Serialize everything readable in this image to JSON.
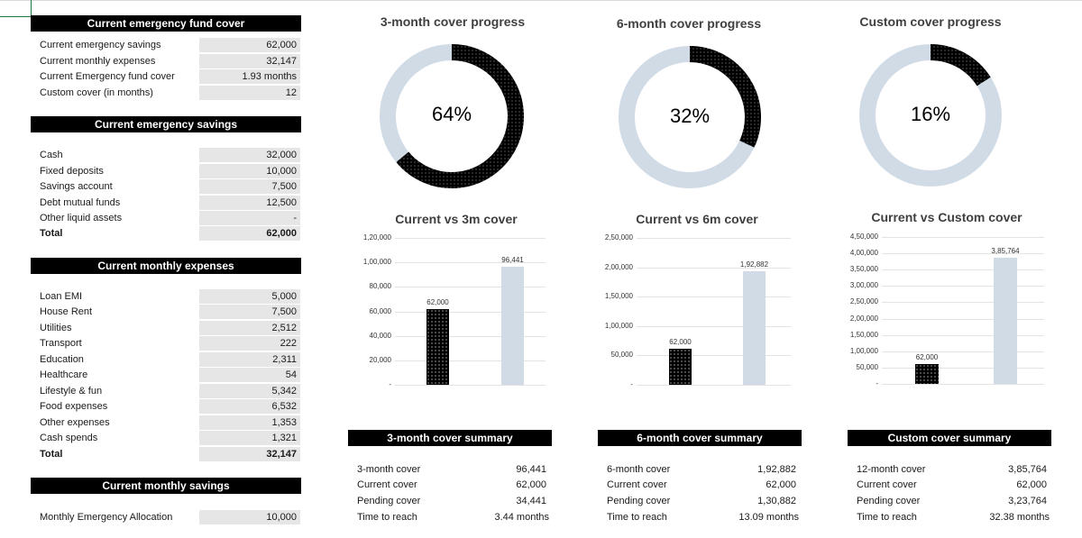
{
  "fund_cover": {
    "title": "Current emergency fund cover",
    "rows": [
      {
        "label": "Current emergency savings",
        "value": "62,000"
      },
      {
        "label": "Current monthly expenses",
        "value": "32,147"
      },
      {
        "label": "Current Emergency fund cover",
        "value": "1.93 months"
      },
      {
        "label": "Custom cover (in months)",
        "value": "12"
      }
    ]
  },
  "savings": {
    "title": "Current emergency savings",
    "rows": [
      {
        "label": "Cash",
        "value": "32,000"
      },
      {
        "label": "Fixed deposits",
        "value": "10,000"
      },
      {
        "label": "Savings account",
        "value": "7,500"
      },
      {
        "label": "Debt mutual funds",
        "value": "12,500"
      },
      {
        "label": "Other liquid assets",
        "value": "-"
      }
    ],
    "total_label": "Total",
    "total_value": "62,000"
  },
  "expenses": {
    "title": "Current monthly expenses",
    "rows": [
      {
        "label": "Loan EMI",
        "value": "5,000"
      },
      {
        "label": "House Rent",
        "value": "7,500"
      },
      {
        "label": "Utilities",
        "value": "2,512"
      },
      {
        "label": "Transport",
        "value": "222"
      },
      {
        "label": "Education",
        "value": "2,311"
      },
      {
        "label": "Healthcare",
        "value": "54"
      },
      {
        "label": "Lifestyle & fun",
        "value": "5,342"
      },
      {
        "label": "Food expenses",
        "value": "6,532"
      },
      {
        "label": "Other expenses",
        "value": "1,353"
      },
      {
        "label": "Cash spends",
        "value": "1,321"
      }
    ],
    "total_label": "Total",
    "total_value": "32,147"
  },
  "monthly_savings": {
    "title": "Current monthly savings",
    "label": "Monthly Emergency Allocation",
    "value": "10,000"
  },
  "colors": {
    "dark": "#000000",
    "light": "#d0dbe6",
    "header_bg": "#000000",
    "cell_bg": "#e6e6e6"
  },
  "chart_data": [
    {
      "type": "pie",
      "title": "3-month cover progress",
      "center_label": "64%",
      "progress": 0.64
    },
    {
      "type": "pie",
      "title": "6-month cover progress",
      "center_label": "32%",
      "progress": 0.32
    },
    {
      "type": "pie",
      "title": "Custom cover progress",
      "center_label": "16%",
      "progress": 0.16
    },
    {
      "type": "bar",
      "title": "Current vs 3m cover",
      "values": [
        62000,
        96441
      ],
      "data_labels": [
        "62,000",
        "96,441"
      ],
      "yticks": [
        "-",
        "20,000",
        "40,000",
        "60,000",
        "80,000",
        "1,00,000",
        "1,20,000"
      ],
      "ylim": [
        0,
        120000
      ]
    },
    {
      "type": "bar",
      "title": "Current vs 6m cover",
      "values": [
        62000,
        192882
      ],
      "data_labels": [
        "62,000",
        "1,92,882"
      ],
      "yticks": [
        "-",
        "50,000",
        "1,00,000",
        "1,50,000",
        "2,00,000",
        "2,50,000"
      ],
      "ylim": [
        0,
        250000
      ]
    },
    {
      "type": "bar",
      "title": "Current vs Custom cover",
      "values": [
        62000,
        385764
      ],
      "data_labels": [
        "62,000",
        "3,85,764"
      ],
      "yticks": [
        "-",
        "50,000",
        "1,00,000",
        "1,50,000",
        "2,00,000",
        "2,50,000",
        "3,00,000",
        "3,50,000",
        "4,00,000",
        "4,50,000"
      ],
      "ylim": [
        0,
        450000
      ]
    }
  ],
  "summaries": [
    {
      "title": "3-month cover summary",
      "rows": [
        {
          "label": "3-month cover",
          "value": "96,441"
        },
        {
          "label": "Current cover",
          "value": "62,000"
        },
        {
          "label": "Pending cover",
          "value": "34,441"
        },
        {
          "label": "Time to reach",
          "value": "3.44 months"
        }
      ]
    },
    {
      "title": "6-month cover summary",
      "rows": [
        {
          "label": "6-month cover",
          "value": "1,92,882"
        },
        {
          "label": "Current cover",
          "value": "62,000"
        },
        {
          "label": "Pending cover",
          "value": "1,30,882"
        },
        {
          "label": "Time to reach",
          "value": "13.09 months"
        }
      ]
    },
    {
      "title": "Custom cover summary",
      "rows": [
        {
          "label": "12-month cover",
          "value": "3,85,764"
        },
        {
          "label": "Current cover",
          "value": "62,000"
        },
        {
          "label": "Pending cover",
          "value": "3,23,764"
        },
        {
          "label": "Time to reach",
          "value": "32.38 months"
        }
      ]
    }
  ]
}
